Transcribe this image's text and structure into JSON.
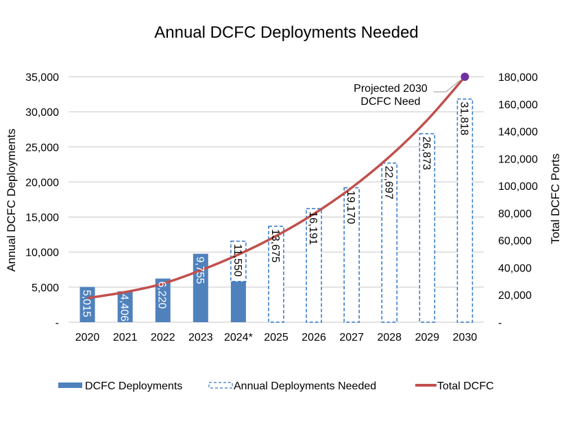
{
  "chart_data": {
    "type": "bar",
    "title": "Annual DCFC Deployments Needed",
    "categories": [
      "2020",
      "2021",
      "2022",
      "2023",
      "2024*",
      "2025",
      "2026",
      "2027",
      "2028",
      "2029",
      "2030"
    ],
    "ylabel": "Annual DCFC Deployments",
    "y2label": "Total DCFC Ports",
    "ylim": [
      0,
      35000
    ],
    "y2lim": [
      0,
      180000
    ],
    "yticks": [
      0,
      5000,
      10000,
      15000,
      20000,
      25000,
      30000,
      35000
    ],
    "ytick_labels": [
      "-",
      "5,000",
      "10,000",
      "15,000",
      "20,000",
      "25,000",
      "30,000",
      "35,000"
    ],
    "y2ticks": [
      0,
      20000,
      40000,
      60000,
      80000,
      100000,
      120000,
      140000,
      160000,
      180000
    ],
    "y2tick_labels": [
      "-",
      "20,000",
      "40,000",
      "60,000",
      "80,000",
      "100,000",
      "120,000",
      "140,000",
      "160,000",
      "180,000"
    ],
    "grid": true,
    "legend_position": "bottom",
    "series": [
      {
        "name": "DCFC Deployments",
        "kind": "bar-solid",
        "color": "#4f81bd",
        "values": [
          5015,
          4406,
          6220,
          9755,
          5800,
          null,
          null,
          null,
          null,
          null,
          null
        ]
      },
      {
        "name": "Annual Deployments Needed",
        "kind": "bar-dashed",
        "color": "#2e75c6",
        "values": [
          null,
          null,
          null,
          null,
          11550,
          13675,
          16191,
          19170,
          22697,
          26873,
          31818
        ]
      },
      {
        "name": "Total DCFC",
        "kind": "line",
        "axis": "right",
        "color": "#c0504d",
        "values": [
          17645,
          22051,
          28271,
          38026,
          49576,
          63251,
          79442,
          98612,
          121309,
          148182,
          180000
        ]
      }
    ],
    "data_labels": [
      "5,015",
      "4,406",
      "6,220",
      "9,755",
      "11,550",
      "13,675",
      "16,191",
      "19,170",
      "22,697",
      "26,873",
      "31,818"
    ],
    "annotation": {
      "text_lines": [
        "Projected 2030",
        "DCFC Need"
      ],
      "marker_color": "#7030a0"
    }
  }
}
